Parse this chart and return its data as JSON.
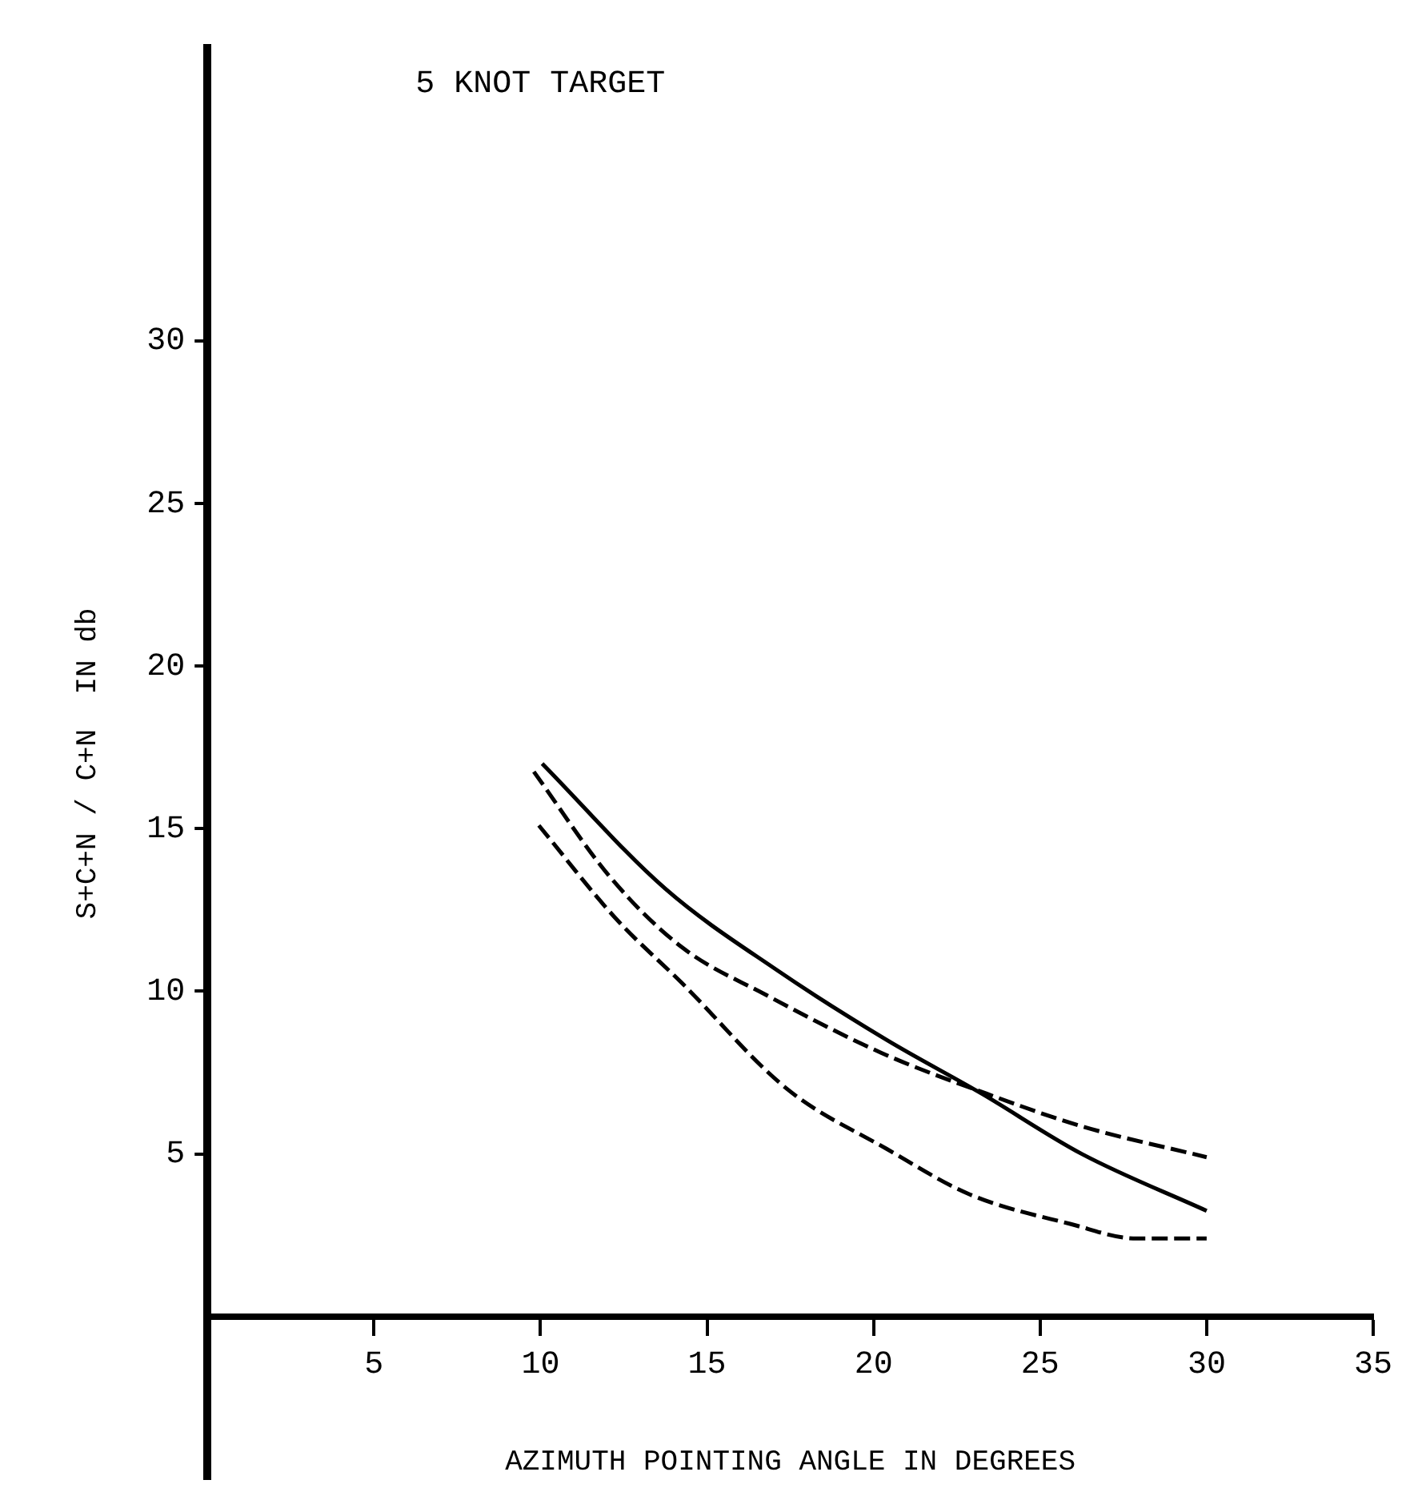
{
  "chart_data": {
    "type": "line",
    "title": "5 KNOT TARGET",
    "xlabel": "AZIMUTH POINTING ANGLE IN DEGREES",
    "ylabel": "S+C+N / C+N  IN db",
    "xlim": [
      0,
      35
    ],
    "xticks": [
      5,
      10,
      15,
      20,
      25,
      30,
      35
    ],
    "ylim": [
      -5,
      39
    ],
    "yticks": [
      5,
      10,
      15,
      20,
      25,
      30
    ],
    "grid": false,
    "legend": false,
    "marker": "none",
    "series": [
      {
        "color": "#000000",
        "line_style": "solid",
        "x": [
          10.05,
          13.75,
          17.1,
          20.4,
          23.25,
          26.25,
          30
        ],
        "values": [
          17.0,
          13.15,
          10.65,
          8.5,
          6.85,
          5.0,
          3.25
        ]
      },
      {
        "color": "#000000",
        "line_style": "dashed",
        "x": [
          9.8,
          12.1,
          14.25,
          16.75,
          20.25,
          23.4,
          26.25,
          30
        ],
        "values": [
          16.75,
          13.5,
          11.35,
          9.9,
          8.1,
          6.85,
          5.85,
          4.9
        ]
      },
      {
        "color": "#000000",
        "line_style": "dashed",
        "x": [
          9.95,
          12.25,
          14.25,
          17.4,
          20.4,
          22.9,
          25.9,
          27.9,
          30
        ],
        "values": [
          15.1,
          12.25,
          10.25,
          7.0,
          5.15,
          3.75,
          2.85,
          2.4,
          2.4
        ]
      }
    ]
  }
}
